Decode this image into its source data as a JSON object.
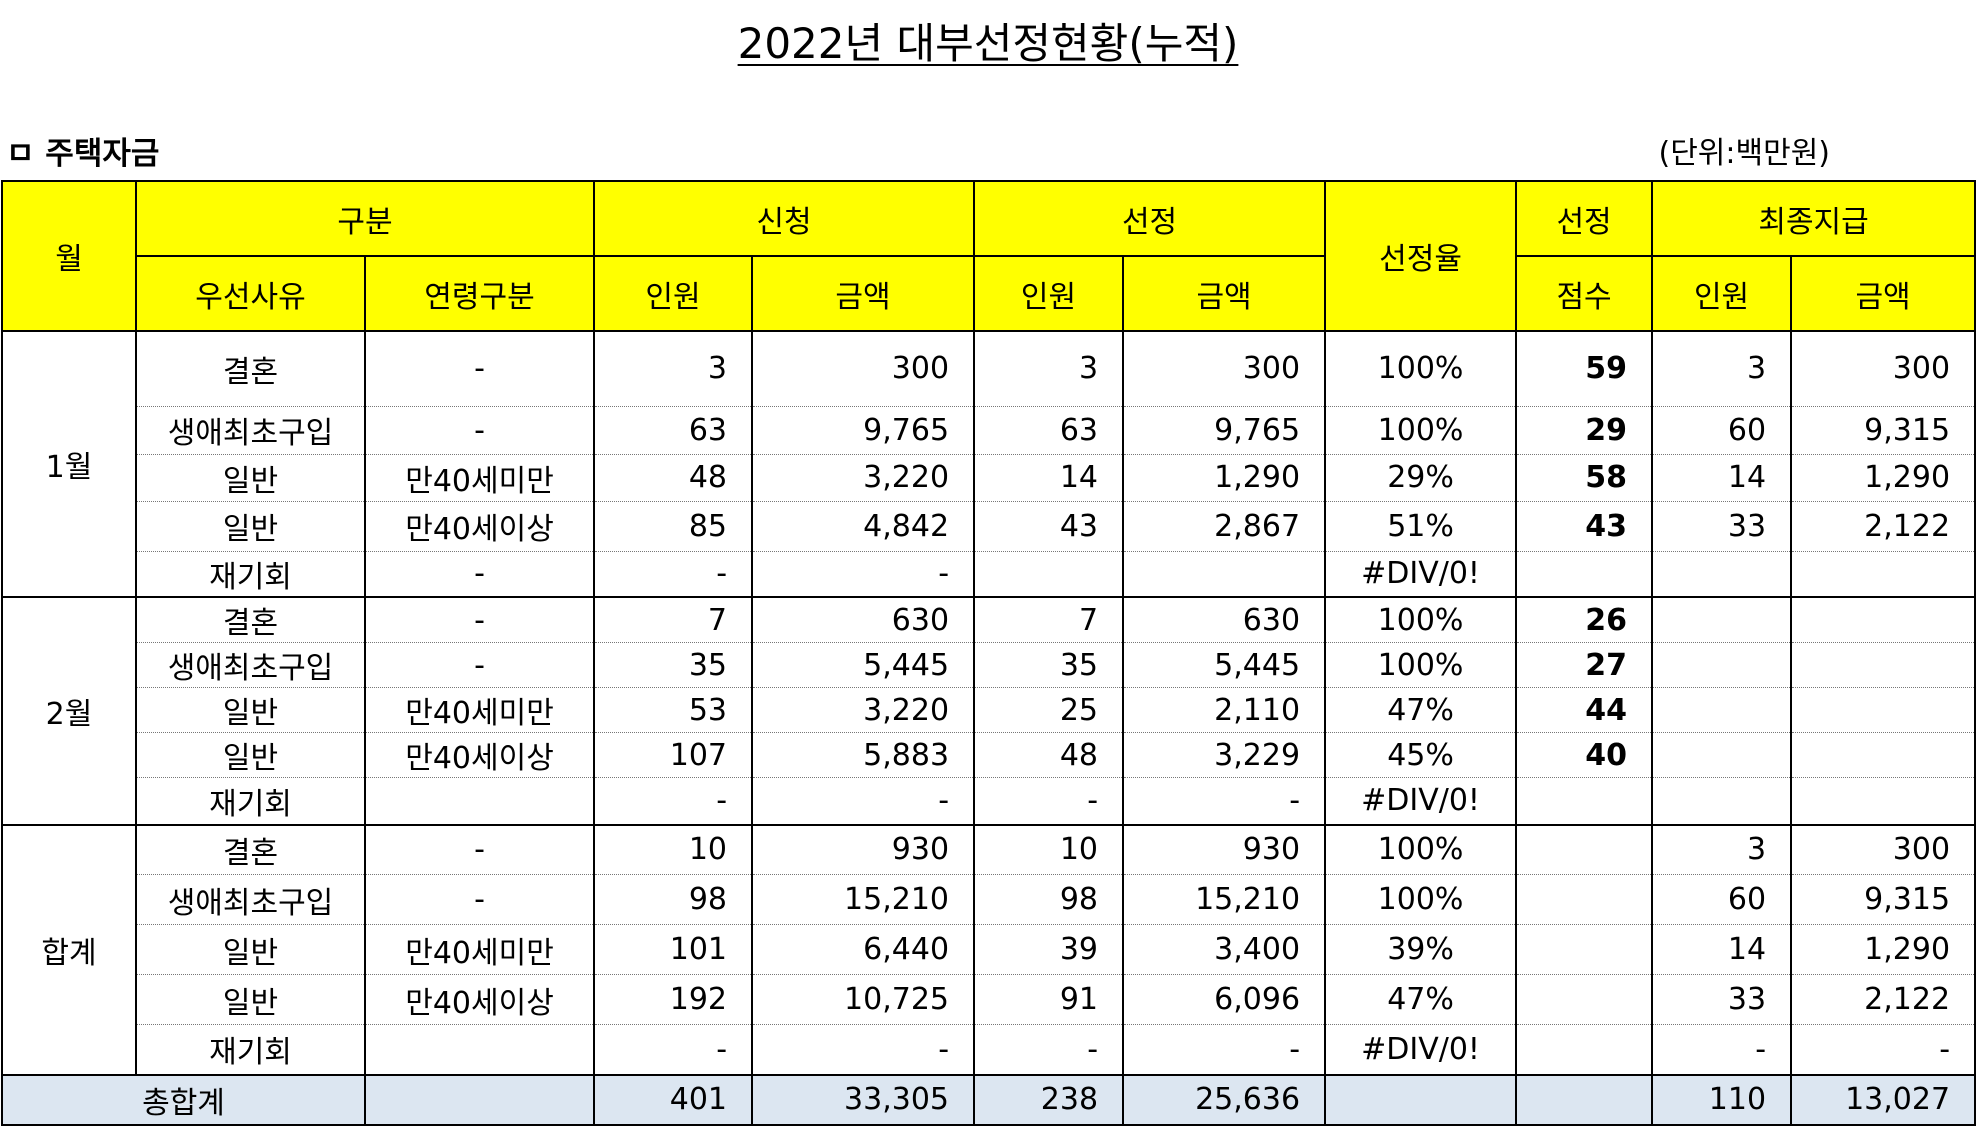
{
  "title": "2022년 대부선정현황(누적)",
  "section": "ㅁ 주택자금",
  "unit": "(단위:백만원)",
  "header": {
    "month": "월",
    "category": "구분",
    "priority": "우선사유",
    "age": "연령구분",
    "apply": "신청",
    "select": "선정",
    "rate": "선정율",
    "score_top": "선정",
    "score_bottom": "점수",
    "final": "최종지급",
    "people": "인원",
    "amount": "금액"
  },
  "groups": [
    {
      "month": "1월",
      "rows": [
        [
          "결혼",
          "-",
          "3",
          "300",
          "3",
          "300",
          "100%",
          "59",
          "3",
          "300"
        ],
        [
          "생애최초구입",
          "-",
          "63",
          "9,765",
          "63",
          "9,765",
          "100%",
          "29",
          "60",
          "9,315"
        ],
        [
          "일반",
          "만40세미만",
          "48",
          "3,220",
          "14",
          "1,290",
          "29%",
          "58",
          "14",
          "1,290"
        ],
        [
          "일반",
          "만40세이상",
          "85",
          "4,842",
          "43",
          "2,867",
          "51%",
          "43",
          "33",
          "2,122"
        ],
        [
          "재기회",
          "-",
          "-",
          "-",
          "",
          "",
          "#DIV/0!",
          "",
          "",
          ""
        ]
      ]
    },
    {
      "month": "2월",
      "rows": [
        [
          "결혼",
          "-",
          "7",
          "630",
          "7",
          "630",
          "100%",
          "26",
          "",
          ""
        ],
        [
          "생애최초구입",
          "-",
          "35",
          "5,445",
          "35",
          "5,445",
          "100%",
          "27",
          "",
          ""
        ],
        [
          "일반",
          "만40세미만",
          "53",
          "3,220",
          "25",
          "2,110",
          "47%",
          "44",
          "",
          ""
        ],
        [
          "일반",
          "만40세이상",
          "107",
          "5,883",
          "48",
          "3,229",
          "45%",
          "40",
          "",
          ""
        ],
        [
          "재기회",
          "",
          "-",
          "-",
          "-",
          "-",
          "#DIV/0!",
          "",
          "",
          ""
        ]
      ]
    },
    {
      "month": "합계",
      "rows": [
        [
          "결혼",
          "-",
          "10",
          "930",
          "10",
          "930",
          "100%",
          "",
          "3",
          "300"
        ],
        [
          "생애최초구입",
          "-",
          "98",
          "15,210",
          "98",
          "15,210",
          "100%",
          "",
          "60",
          "9,315"
        ],
        [
          "일반",
          "만40세미만",
          "101",
          "6,440",
          "39",
          "3,400",
          "39%",
          "",
          "14",
          "1,290"
        ],
        [
          "일반",
          "만40세이상",
          "192",
          "10,725",
          "91",
          "6,096",
          "47%",
          "",
          "33",
          "2,122"
        ],
        [
          "재기회",
          "",
          "-",
          "-",
          "-",
          "-",
          "#DIV/0!",
          "",
          "-",
          "-"
        ]
      ]
    }
  ],
  "total": {
    "label": "총합계",
    "apply_people": "401",
    "apply_amount": "33,305",
    "select_people": "238",
    "select_amount": "25,636",
    "final_people": "110",
    "final_amount": "13,027"
  }
}
